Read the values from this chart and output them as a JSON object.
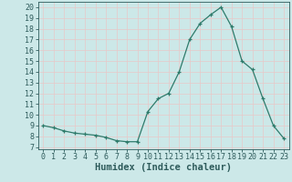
{
  "x": [
    0,
    1,
    2,
    3,
    4,
    5,
    6,
    7,
    8,
    9,
    10,
    11,
    12,
    13,
    14,
    15,
    16,
    17,
    18,
    19,
    20,
    21,
    22,
    23
  ],
  "y": [
    9.0,
    8.8,
    8.5,
    8.3,
    8.2,
    8.1,
    7.9,
    7.6,
    7.5,
    7.5,
    10.3,
    11.5,
    12.0,
    14.0,
    17.0,
    18.5,
    19.3,
    20.0,
    18.2,
    15.0,
    14.2,
    11.5,
    9.0,
    7.8
  ],
  "xlabel": "Humidex (Indice chaleur)",
  "ylabel_ticks": [
    7,
    8,
    9,
    10,
    11,
    12,
    13,
    14,
    15,
    16,
    17,
    18,
    19,
    20
  ],
  "ylim": [
    6.8,
    20.5
  ],
  "xlim": [
    -0.5,
    23.5
  ],
  "bg_color": "#cce8e8",
  "grid_color": "#e8c8c8",
  "line_color": "#2e7b6b",
  "marker_color": "#2e7b6b",
  "axis_color": "#2e5b5b",
  "tick_fontsize": 6.0,
  "xlabel_fontsize": 7.5
}
